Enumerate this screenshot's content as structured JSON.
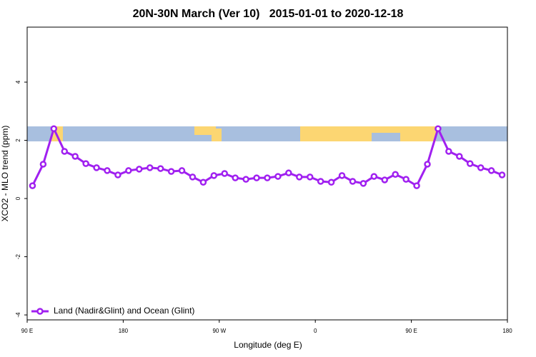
{
  "chart_data": {
    "type": "line",
    "title": "20N-30N March (Ver 10)   2015-01-01 to 2020-12-18",
    "xlabel": "Longitude (deg E)",
    "ylabel": "XCO2 - MLO trend (ppm)",
    "x": [
      95,
      105,
      115,
      125,
      135,
      145,
      155,
      165,
      175,
      185,
      195,
      205,
      215,
      225,
      235,
      245,
      255,
      265,
      275,
      285,
      295,
      305,
      315,
      325,
      335,
      345,
      355,
      365,
      375,
      385,
      395,
      405,
      415,
      425,
      435,
      445,
      455,
      465,
      475,
      485,
      495,
      505,
      515,
      525,
      535
    ],
    "series": [
      {
        "name": "Land (Nadir&Glint) and Ocean (Glint)",
        "color": "#a020f0",
        "values": [
          0.44,
          1.18,
          2.4,
          1.62,
          1.45,
          1.2,
          1.06,
          0.96,
          0.81,
          0.96,
          1.01,
          1.06,
          1.03,
          0.93,
          0.96,
          0.74,
          0.56,
          0.79,
          0.86,
          0.71,
          0.66,
          0.71,
          0.71,
          0.76,
          0.88,
          0.74,
          0.74,
          0.59,
          0.56,
          0.79,
          0.59,
          0.52,
          0.76,
          0.64,
          0.83,
          0.66,
          0.44,
          1.18,
          2.4,
          1.62,
          1.45,
          1.2,
          1.06,
          0.96,
          0.81
        ]
      }
    ],
    "xlim": [
      90,
      540
    ],
    "xticks": [
      {
        "value": 90,
        "label": "90 E"
      },
      180,
      {
        "value": 270,
        "label": "90 W"
      },
      {
        "value": 360,
        "label": "0"
      },
      {
        "value": 450,
        "label": "90 E"
      },
      {
        "value": 540,
        "label": "180"
      }
    ],
    "ylim": [
      -4.17,
      5.89
    ],
    "yticks": [
      -4,
      -2,
      0,
      2,
      4
    ],
    "legend": "bottom-left"
  }
}
